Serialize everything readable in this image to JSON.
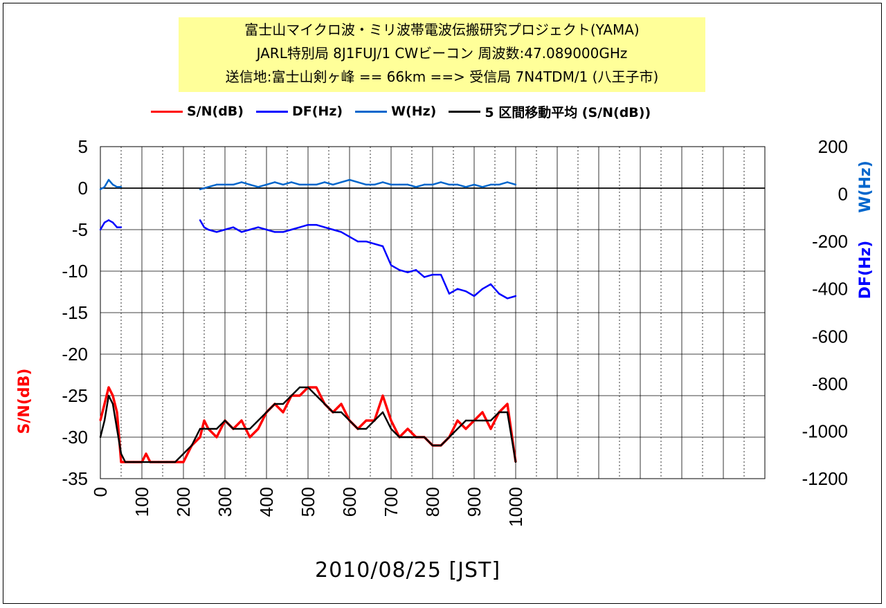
{
  "title_lines": [
    "富士山マイクロ波・ミリ波帯電波伝搬研究プロジェクト(YAMA)",
    "JARL特別局 8J1FUJ/1 CWビーコン 周波数:47.089000GHz",
    "送信地:富士山剣ヶ峰  == 66km ==> 受信局 7N4TDM/1 (八王子市)"
  ],
  "legend": [
    {
      "label": "S/N(dB)",
      "color": "#ff0000"
    },
    {
      "label": "DF(Hz)",
      "color": "#0000ff"
    },
    {
      "label": "W(Hz)",
      "color": "#0066cc"
    },
    {
      "label": "5 区間移動平均 (S/N(dB))",
      "color": "#000000"
    }
  ],
  "colors": {
    "sn": "#ff0000",
    "df": "#0000ff",
    "w": "#0066cc",
    "avg": "#000000",
    "title_bg": "#ffff99"
  },
  "chart_data": {
    "type": "line",
    "xlabel": "2010/08/25    [JST]",
    "ylabel_left": "S/N(dB)",
    "ylabel_right_w": "W(Hz)",
    "ylabel_right_df": "DF(Hz)",
    "xlim": [
      0,
      1600
    ],
    "xticks": [
      0,
      100,
      200,
      300,
      400,
      500,
      600,
      700,
      800,
      900,
      1000
    ],
    "ylim_left": [
      -35,
      5
    ],
    "yticks_left": [
      5,
      0,
      -5,
      -10,
      -15,
      -20,
      -25,
      -30,
      -35
    ],
    "ylim_right": [
      -1200,
      200
    ],
    "yticks_right": [
      200,
      0,
      -200,
      -400,
      -600,
      -800,
      -1000,
      -1200
    ],
    "grid": true,
    "series": [
      {
        "name": "S/N(dB)",
        "axis": "left",
        "x": [
          0,
          10,
          20,
          30,
          40,
          50,
          60,
          80,
          100,
          110,
          120,
          140,
          160,
          180,
          200,
          220,
          240,
          250,
          260,
          280,
          300,
          320,
          340,
          360,
          380,
          400,
          420,
          440,
          460,
          480,
          500,
          520,
          540,
          560,
          580,
          600,
          620,
          640,
          660,
          680,
          700,
          720,
          740,
          760,
          780,
          800,
          820,
          840,
          860,
          880,
          900,
          920,
          940,
          960,
          980,
          1000
        ],
        "y": [
          -28,
          -26,
          -24,
          -25,
          -27,
          -33,
          -33,
          -33,
          -33,
          -32,
          -33,
          -33,
          -33,
          -33,
          -33,
          -31,
          -30,
          -28,
          -29,
          -30,
          -28,
          -29,
          -28,
          -30,
          -29,
          -27,
          -26,
          -27,
          -25,
          -25,
          -24,
          -24,
          -26,
          -27,
          -26,
          -28,
          -29,
          -28,
          -28,
          -25,
          -28,
          -30,
          -29,
          -30,
          -30,
          -31,
          -31,
          -30,
          -28,
          -29,
          -28,
          -27,
          -29,
          -27,
          -26,
          -33
        ]
      },
      {
        "name": "DF(Hz)",
        "axis": "right",
        "x": [
          0,
          10,
          20,
          30,
          40,
          50,
          240,
          250,
          260,
          280,
          300,
          320,
          340,
          360,
          380,
          400,
          420,
          440,
          460,
          480,
          500,
          520,
          540,
          560,
          580,
          600,
          620,
          640,
          660,
          680,
          700,
          720,
          740,
          760,
          780,
          800,
          820,
          840,
          860,
          880,
          900,
          920,
          940,
          960,
          980,
          1000
        ],
        "y": [
          -150,
          -120,
          -110,
          -120,
          -140,
          -140,
          -110,
          -140,
          -150,
          -160,
          -150,
          -140,
          -160,
          -150,
          -140,
          -150,
          -160,
          -160,
          -150,
          -140,
          -130,
          -130,
          -140,
          -150,
          -160,
          -180,
          -200,
          -200,
          -210,
          -220,
          -300,
          -320,
          -330,
          -320,
          -350,
          -340,
          -340,
          -420,
          -400,
          -410,
          -430,
          -400,
          -380,
          -420,
          -440,
          -430
        ]
      },
      {
        "name": "W(Hz)",
        "axis": "right",
        "x": [
          0,
          10,
          20,
          30,
          40,
          50,
          240,
          260,
          280,
          300,
          320,
          340,
          360,
          380,
          400,
          420,
          440,
          460,
          480,
          500,
          520,
          540,
          560,
          580,
          600,
          620,
          640,
          660,
          680,
          700,
          720,
          740,
          760,
          780,
          800,
          820,
          840,
          860,
          880,
          900,
          920,
          940,
          960,
          980,
          1000
        ],
        "y": [
          20,
          30,
          60,
          40,
          30,
          30,
          20,
          30,
          40,
          40,
          40,
          50,
          40,
          30,
          40,
          50,
          40,
          50,
          40,
          40,
          40,
          50,
          40,
          50,
          60,
          50,
          40,
          40,
          50,
          40,
          40,
          40,
          30,
          40,
          40,
          50,
          40,
          40,
          30,
          40,
          30,
          40,
          40,
          50,
          40
        ]
      },
      {
        "name": "5 区間移動平均 (S/N(dB))",
        "axis": "left",
        "x": [
          0,
          10,
          20,
          30,
          40,
          50,
          60,
          80,
          100,
          120,
          140,
          160,
          180,
          200,
          220,
          240,
          260,
          280,
          300,
          320,
          340,
          360,
          380,
          400,
          420,
          440,
          460,
          480,
          500,
          520,
          540,
          560,
          580,
          600,
          620,
          640,
          660,
          680,
          700,
          720,
          740,
          760,
          780,
          800,
          820,
          840,
          860,
          880,
          900,
          920,
          940,
          960,
          980,
          1000
        ],
        "y": [
          -30,
          -28,
          -25,
          -26,
          -29,
          -32,
          -33,
          -33,
          -33,
          -33,
          -33,
          -33,
          -33,
          -32,
          -31,
          -29,
          -29,
          -29,
          -28,
          -29,
          -29,
          -29,
          -28,
          -27,
          -26,
          -26,
          -25,
          -24,
          -24,
          -25,
          -26,
          -27,
          -27,
          -28,
          -29,
          -29,
          -28,
          -27,
          -29,
          -30,
          -30,
          -30,
          -30,
          -31,
          -31,
          -30,
          -29,
          -28,
          -28,
          -28,
          -28,
          -27,
          -27,
          -33
        ]
      }
    ]
  }
}
